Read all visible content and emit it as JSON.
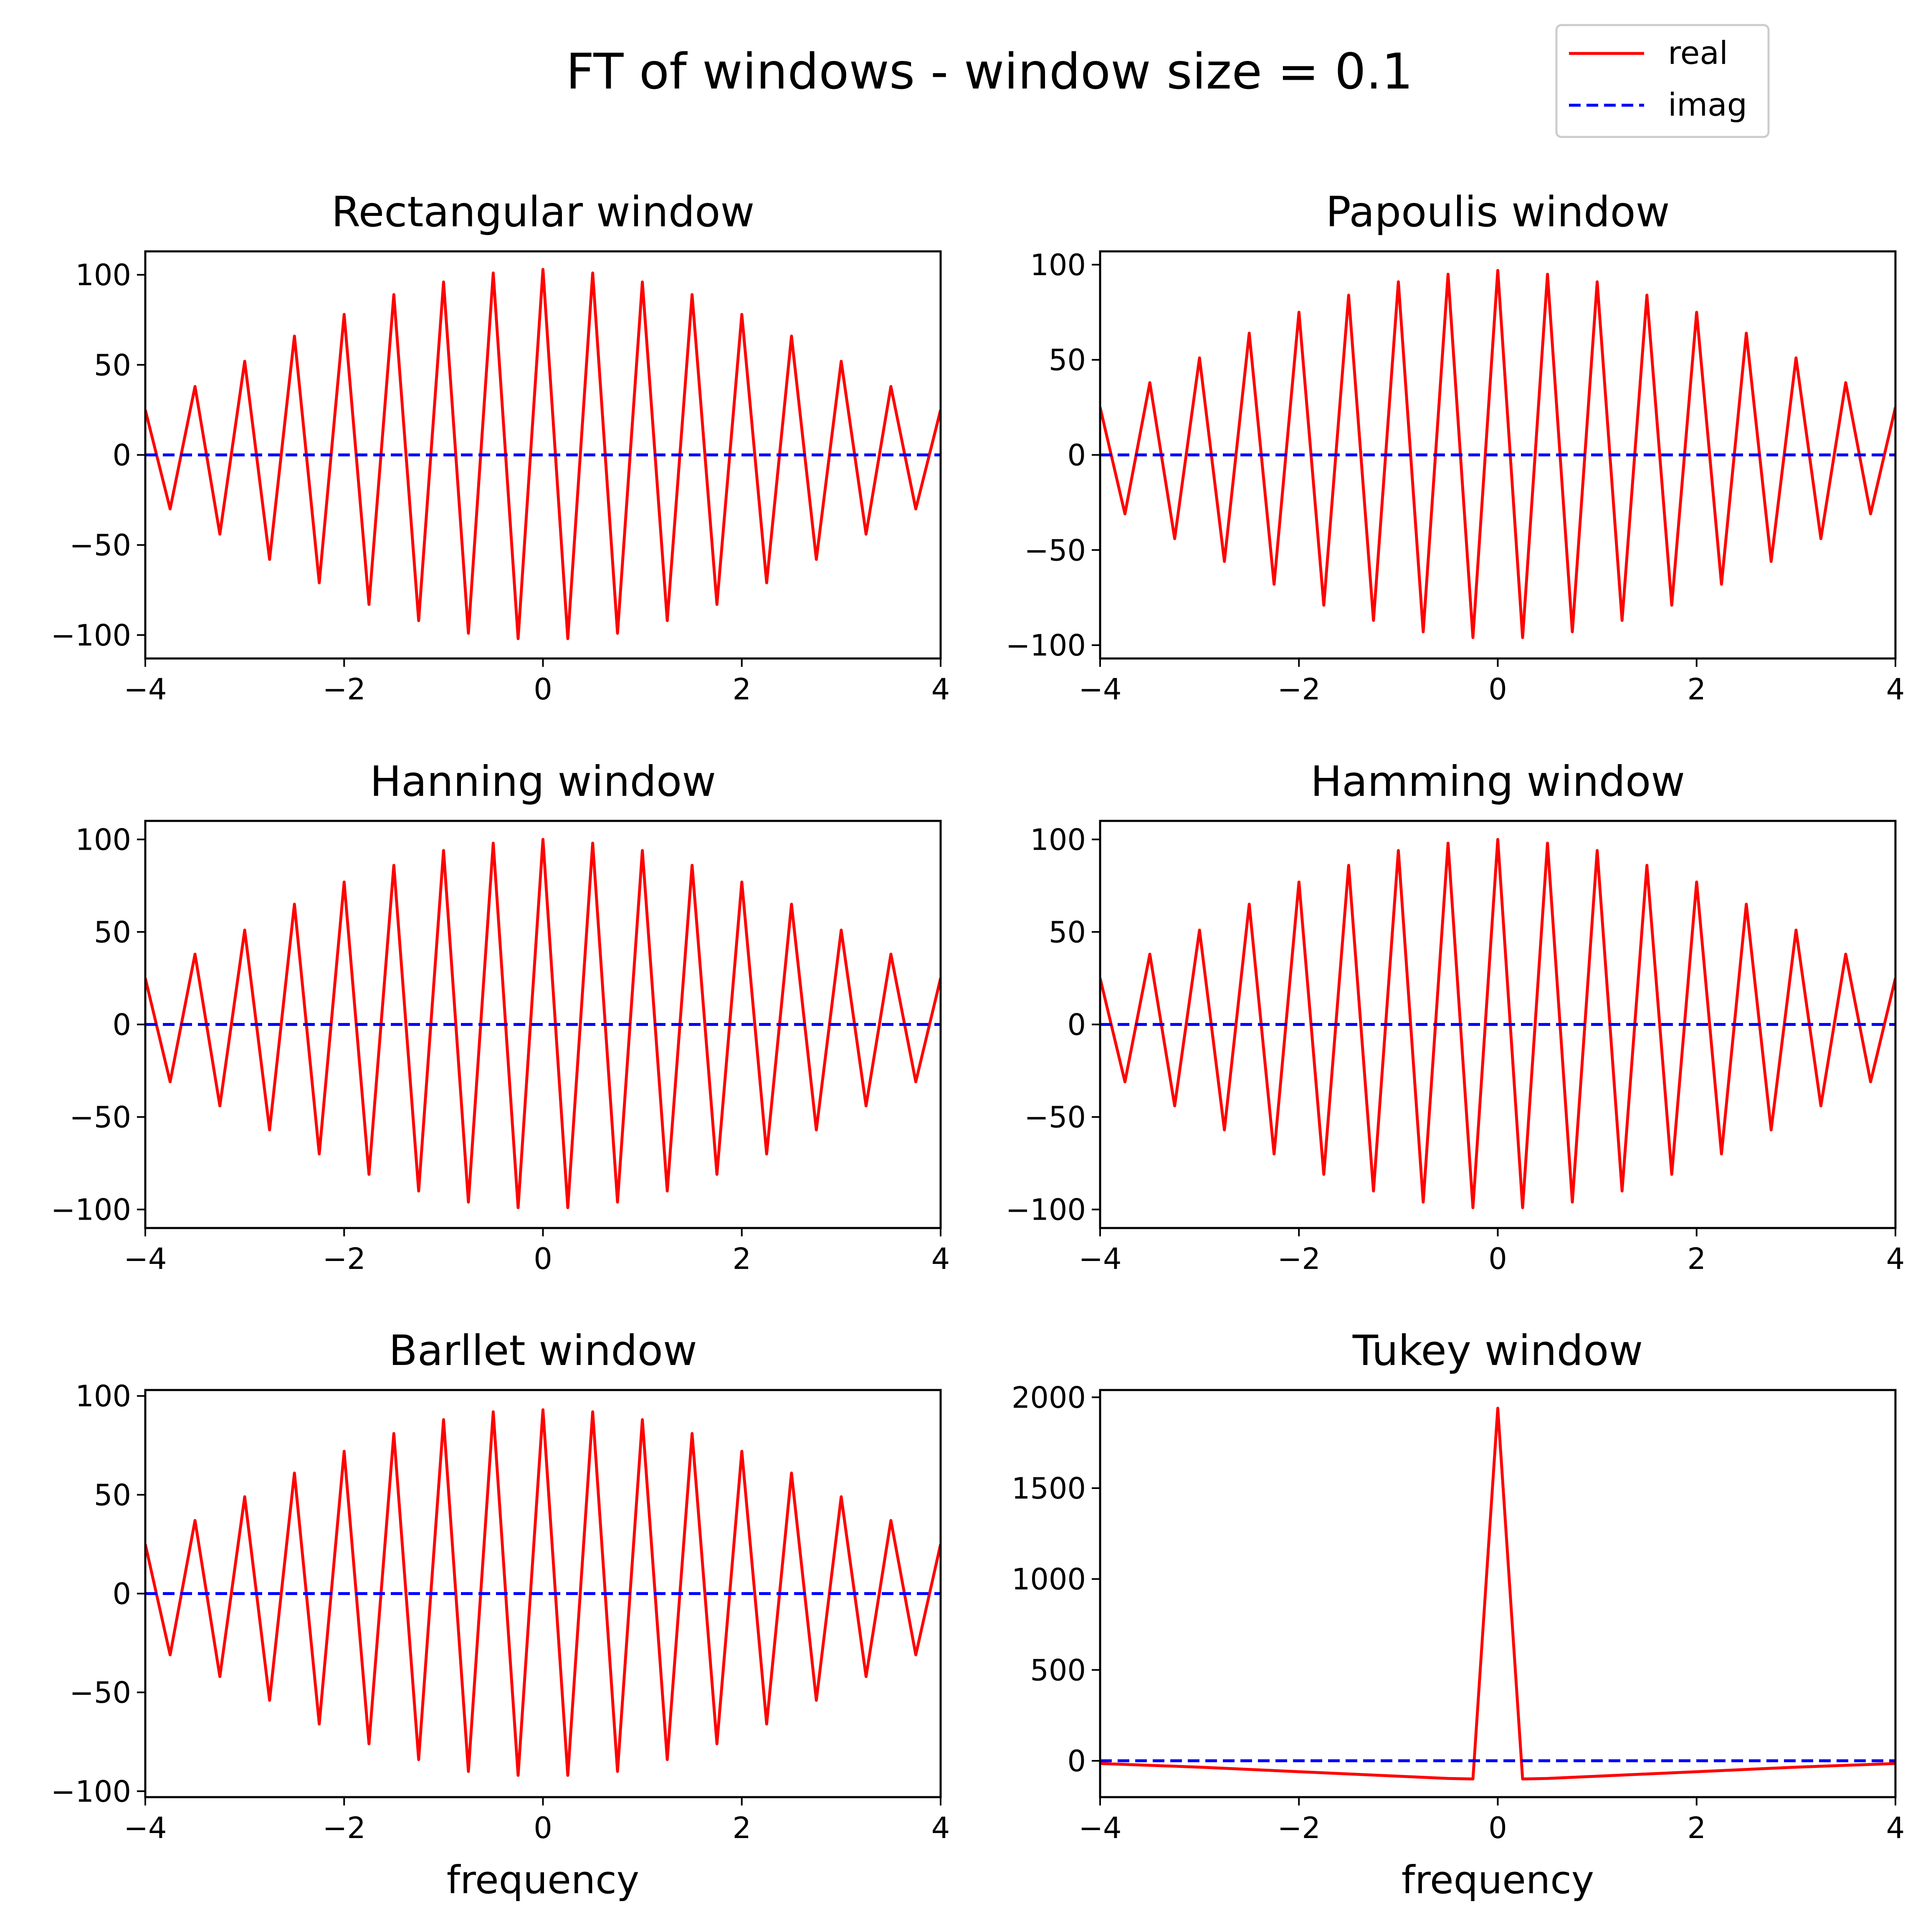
{
  "figure": {
    "title": "FT of windows - window size = 0.1",
    "legend": {
      "location": "top-right",
      "entries": [
        {
          "label": "real",
          "color": "#ff0000",
          "style": "solid"
        },
        {
          "label": "imag",
          "color": "#0000ff",
          "style": "dashed"
        }
      ]
    }
  },
  "chart_data": [
    {
      "type": "line",
      "title": "Rectangular window",
      "xlabel": "",
      "xlim": [
        -4,
        4
      ],
      "ylim": [
        -113,
        113
      ],
      "xticks": [
        -4,
        -2,
        0,
        2,
        4
      ],
      "yticks": [
        -100,
        -50,
        0,
        50,
        100
      ],
      "x": [
        -4,
        -3.75,
        -3.5,
        -3.25,
        -3,
        -2.75,
        -2.5,
        -2.25,
        -2,
        -1.75,
        -1.5,
        -1.25,
        -1,
        -0.75,
        -0.5,
        -0.25,
        0,
        0.25,
        0.5,
        0.75,
        1,
        1.25,
        1.5,
        1.75,
        2,
        2.25,
        2.5,
        2.75,
        3,
        3.25,
        3.5,
        3.75,
        4
      ],
      "series": [
        {
          "name": "real",
          "values": [
            25,
            -30,
            38,
            -44,
            52,
            -58,
            66,
            -71,
            78,
            -83,
            89,
            -92,
            96,
            -99,
            101,
            -102,
            103,
            -102,
            101,
            -99,
            96,
            -92,
            89,
            -83,
            78,
            -71,
            66,
            -58,
            52,
            -44,
            38,
            -30,
            25
          ]
        },
        {
          "name": "imag",
          "values": [
            0,
            0,
            0,
            0,
            0,
            0,
            0,
            0,
            0,
            0,
            0,
            0,
            0,
            0,
            0,
            0,
            0,
            0,
            0,
            0,
            0,
            0,
            0,
            0,
            0,
            0,
            0,
            0,
            0,
            0,
            0,
            0,
            0
          ]
        }
      ]
    },
    {
      "type": "line",
      "title": "Papoulis window",
      "xlabel": "",
      "xlim": [
        -4,
        4
      ],
      "ylim": [
        -107,
        107
      ],
      "xticks": [
        -4,
        -2,
        0,
        2,
        4
      ],
      "yticks": [
        -100,
        -50,
        0,
        50,
        100
      ],
      "x": [
        -4,
        -3.75,
        -3.5,
        -3.25,
        -3,
        -2.75,
        -2.5,
        -2.25,
        -2,
        -1.75,
        -1.5,
        -1.25,
        -1,
        -0.75,
        -0.5,
        -0.25,
        0,
        0.25,
        0.5,
        0.75,
        1,
        1.25,
        1.5,
        1.75,
        2,
        2.25,
        2.5,
        2.75,
        3,
        3.25,
        3.5,
        3.75,
        4
      ],
      "series": [
        {
          "name": "real",
          "values": [
            25,
            -31,
            38,
            -44,
            51,
            -56,
            64,
            -68,
            75,
            -79,
            84,
            -87,
            91,
            -93,
            95,
            -96,
            97,
            -96,
            95,
            -93,
            91,
            -87,
            84,
            -79,
            75,
            -68,
            64,
            -56,
            51,
            -44,
            38,
            -31,
            25
          ]
        },
        {
          "name": "imag",
          "values": [
            0,
            0,
            0,
            0,
            0,
            0,
            0,
            0,
            0,
            0,
            0,
            0,
            0,
            0,
            0,
            0,
            0,
            0,
            0,
            0,
            0,
            0,
            0,
            0,
            0,
            0,
            0,
            0,
            0,
            0,
            0,
            0,
            0
          ]
        }
      ]
    },
    {
      "type": "line",
      "title": "Hanning window",
      "xlabel": "",
      "xlim": [
        -4,
        4
      ],
      "ylim": [
        -110,
        110
      ],
      "xticks": [
        -4,
        -2,
        0,
        2,
        4
      ],
      "yticks": [
        -100,
        -50,
        0,
        50,
        100
      ],
      "x": [
        -4,
        -3.75,
        -3.5,
        -3.25,
        -3,
        -2.75,
        -2.5,
        -2.25,
        -2,
        -1.75,
        -1.5,
        -1.25,
        -1,
        -0.75,
        -0.5,
        -0.25,
        0,
        0.25,
        0.5,
        0.75,
        1,
        1.25,
        1.5,
        1.75,
        2,
        2.25,
        2.5,
        2.75,
        3,
        3.25,
        3.5,
        3.75,
        4
      ],
      "series": [
        {
          "name": "real",
          "values": [
            25,
            -31,
            38,
            -44,
            51,
            -57,
            65,
            -70,
            77,
            -81,
            86,
            -90,
            94,
            -96,
            98,
            -99,
            100,
            -99,
            98,
            -96,
            94,
            -90,
            86,
            -81,
            77,
            -70,
            65,
            -57,
            51,
            -44,
            38,
            -31,
            25
          ]
        },
        {
          "name": "imag",
          "values": [
            0,
            0,
            0,
            0,
            0,
            0,
            0,
            0,
            0,
            0,
            0,
            0,
            0,
            0,
            0,
            0,
            0,
            0,
            0,
            0,
            0,
            0,
            0,
            0,
            0,
            0,
            0,
            0,
            0,
            0,
            0,
            0,
            0
          ]
        }
      ]
    },
    {
      "type": "line",
      "title": "Hamming window",
      "xlabel": "",
      "xlim": [
        -4,
        4
      ],
      "ylim": [
        -110,
        110
      ],
      "xticks": [
        -4,
        -2,
        0,
        2,
        4
      ],
      "yticks": [
        -100,
        -50,
        0,
        50,
        100
      ],
      "x": [
        -4,
        -3.75,
        -3.5,
        -3.25,
        -3,
        -2.75,
        -2.5,
        -2.25,
        -2,
        -1.75,
        -1.5,
        -1.25,
        -1,
        -0.75,
        -0.5,
        -0.25,
        0,
        0.25,
        0.5,
        0.75,
        1,
        1.25,
        1.5,
        1.75,
        2,
        2.25,
        2.5,
        2.75,
        3,
        3.25,
        3.5,
        3.75,
        4
      ],
      "series": [
        {
          "name": "real",
          "values": [
            25,
            -31,
            38,
            -44,
            51,
            -57,
            65,
            -70,
            77,
            -81,
            86,
            -90,
            94,
            -96,
            98,
            -99,
            100,
            -99,
            98,
            -96,
            94,
            -90,
            86,
            -81,
            77,
            -70,
            65,
            -57,
            51,
            -44,
            38,
            -31,
            25
          ]
        },
        {
          "name": "imag",
          "values": [
            0,
            0,
            0,
            0,
            0,
            0,
            0,
            0,
            0,
            0,
            0,
            0,
            0,
            0,
            0,
            0,
            0,
            0,
            0,
            0,
            0,
            0,
            0,
            0,
            0,
            0,
            0,
            0,
            0,
            0,
            0,
            0,
            0
          ]
        }
      ]
    },
    {
      "type": "line",
      "title": "Barllet window",
      "xlabel": "frequency",
      "xlim": [
        -4,
        4
      ],
      "ylim": [
        -103,
        103
      ],
      "xticks": [
        -4,
        -2,
        0,
        2,
        4
      ],
      "yticks": [
        -100,
        -50,
        0,
        50,
        100
      ],
      "x": [
        -4,
        -3.75,
        -3.5,
        -3.25,
        -3,
        -2.75,
        -2.5,
        -2.25,
        -2,
        -1.75,
        -1.5,
        -1.25,
        -1,
        -0.75,
        -0.5,
        -0.25,
        0,
        0.25,
        0.5,
        0.75,
        1,
        1.25,
        1.5,
        1.75,
        2,
        2.25,
        2.5,
        2.75,
        3,
        3.25,
        3.5,
        3.75,
        4
      ],
      "series": [
        {
          "name": "real",
          "values": [
            25,
            -31,
            37,
            -42,
            49,
            -54,
            61,
            -66,
            72,
            -76,
            81,
            -84,
            88,
            -90,
            92,
            -92,
            93,
            -92,
            92,
            -90,
            88,
            -84,
            81,
            -76,
            72,
            -66,
            61,
            -54,
            49,
            -42,
            37,
            -31,
            25
          ]
        },
        {
          "name": "imag",
          "values": [
            0,
            0,
            0,
            0,
            0,
            0,
            0,
            0,
            0,
            0,
            0,
            0,
            0,
            0,
            0,
            0,
            0,
            0,
            0,
            0,
            0,
            0,
            0,
            0,
            0,
            0,
            0,
            0,
            0,
            0,
            0,
            0,
            0
          ]
        }
      ]
    },
    {
      "type": "line",
      "title": "Tukey window",
      "xlabel": "frequency",
      "xlim": [
        -4,
        4
      ],
      "ylim": [
        -200,
        2040
      ],
      "xticks": [
        -4,
        -2,
        0,
        2,
        4
      ],
      "yticks": [
        0,
        500,
        1000,
        1500,
        2000
      ],
      "x": [
        -4,
        -3,
        -2,
        -1,
        -0.5,
        -0.25,
        0,
        0.25,
        0.5,
        1,
        2,
        3,
        4
      ],
      "series": [
        {
          "name": "real",
          "values": [
            -15,
            -35,
            -60,
            -85,
            -97,
            -100,
            1940,
            -100,
            -97,
            -85,
            -60,
            -35,
            -15
          ]
        },
        {
          "name": "imag",
          "values": [
            0,
            0,
            0,
            0,
            0,
            0,
            0,
            0,
            0,
            0,
            0,
            0,
            0
          ]
        }
      ]
    }
  ]
}
